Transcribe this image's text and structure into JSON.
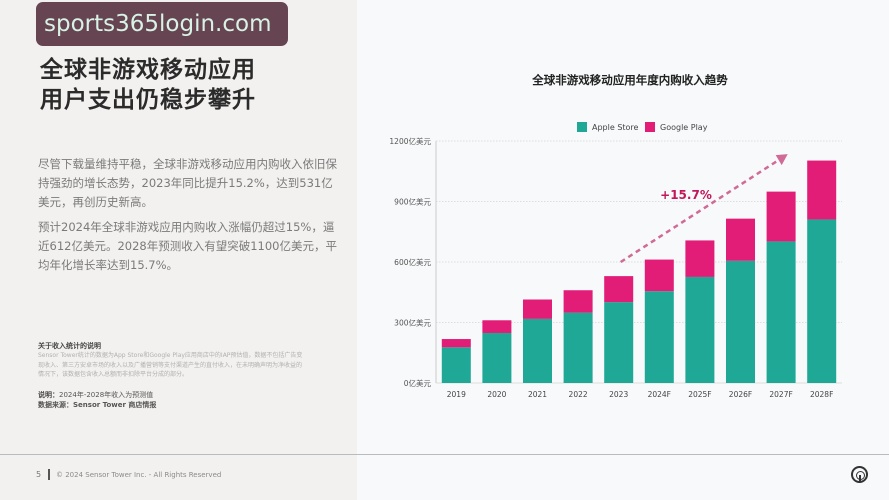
{
  "left": {
    "heading_line1": "全球非游戏移动应用",
    "heading_line2": "用户支出仍稳步攀升",
    "para1": "尽管下载量维持平稳，全球非游戏移动应用内购收入依旧保持强劲的增长态势，2023年同比提升15.2%，达到531亿美元，再创历史新高。",
    "para2": "预计2024年全球非游戏应用内购收入涨幅仍超过15%，逼近612亿美元。2028年预测收入有望突破1100亿美元，平均年化增长率达到15.7%。",
    "note_title": "关于收入统计的说明",
    "note_body": "Sensor Tower统计的数据为App Store和Google Play应用商店中的IAP预估值，数据不包括广告变现收入、第三方安卓市场的收入以及广播营销等支付渠道产生的直付收入，在未明确声明为净收益的情况下，该数据包含收入总额而非扣除平台分成的部分。",
    "note_label": "说明：",
    "note_text": "2024年-2028年收入为预测值",
    "source_label": "数据来源：",
    "source_text": "Sensor Tower 商店情报"
  },
  "watermark": "sports365login.com",
  "footer": {
    "page": "5",
    "copyright": "© 2024 Sensor Tower Inc. - All Rights Reserved"
  },
  "chart_data": {
    "type": "bar",
    "stacked": true,
    "title": "全球非游戏移动应用年度内购收入趋势",
    "categories": [
      "2019",
      "2020",
      "2021",
      "2022",
      "2023",
      "2024F",
      "2025F",
      "2026F",
      "2027F",
      "2028F"
    ],
    "series": [
      {
        "name": "Apple Store",
        "color": "#1fa896",
        "values": [
          177,
          248,
          318,
          349,
          401,
          455,
          526,
          606,
          702,
          811
        ]
      },
      {
        "name": "Google Play",
        "color": "#e21d77",
        "values": [
          41,
          63,
          96,
          111,
          129,
          157,
          181,
          209,
          247,
          292
        ]
      }
    ],
    "ylim": [
      0,
      1200
    ],
    "yticks": [
      0,
      300,
      600,
      900,
      1200
    ],
    "ytick_labels": [
      "0亿美元",
      "300亿美元",
      "600亿美元",
      "900亿美元",
      "1200亿美元"
    ],
    "grid": true,
    "legend": "top",
    "annotation": {
      "text": "+15.7%",
      "color": "#c2185b",
      "from_category": "2023",
      "to_category": "2028F"
    }
  }
}
